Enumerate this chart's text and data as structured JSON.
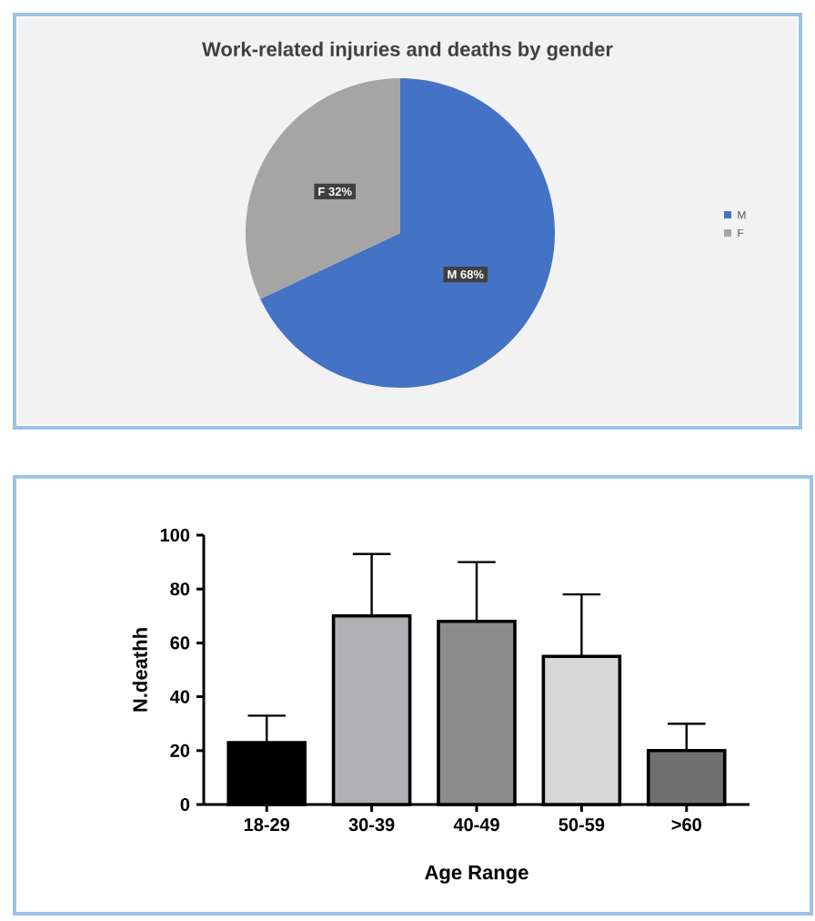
{
  "chart_data": [
    {
      "type": "pie",
      "title": "Work-related injuries and deaths by gender",
      "categories": [
        "M",
        "F"
      ],
      "values": [
        68,
        32
      ],
      "colors": [
        "#4472c4",
        "#a5a5a5"
      ],
      "legend": "right",
      "value_labels": [
        "68%",
        "32%"
      ]
    },
    {
      "type": "bar",
      "xlabel": "Age Range",
      "ylabel": "N.deathh",
      "categories": [
        "18-29",
        "30-39",
        "40-49",
        "50-59",
        ">60"
      ],
      "values": [
        23,
        70,
        68,
        55,
        20
      ],
      "colors": [
        "#000000",
        "#b0b0b4",
        "#8c8c8c",
        "#d8d8d8",
        "#707070"
      ],
      "errors": [
        [
          23,
          33
        ],
        [
          70,
          93
        ],
        [
          68,
          90
        ],
        [
          55,
          78
        ],
        [
          20,
          30
        ]
      ],
      "ylim": [
        0,
        100
      ],
      "yticks": [
        0,
        20,
        40,
        60,
        80,
        100
      ]
    }
  ]
}
